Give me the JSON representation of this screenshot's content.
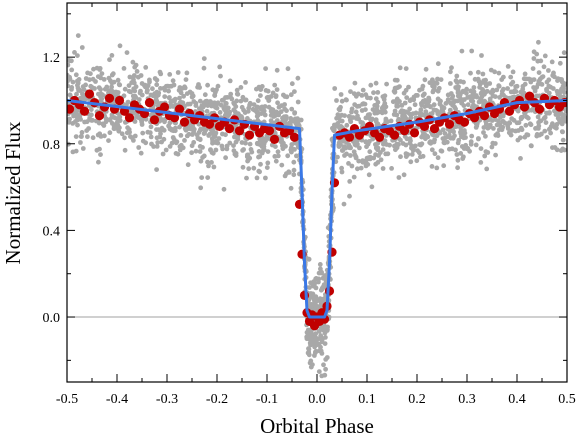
{
  "chart_data": {
    "type": "scatter",
    "title": "",
    "xlabel": "Orbital Phase",
    "ylabel": "Normalized Flux",
    "xlim": [
      -0.5,
      0.5
    ],
    "ylim": [
      -0.3,
      1.45
    ],
    "x_ticks": [
      -0.5,
      -0.4,
      -0.3,
      -0.2,
      -0.1,
      0.0,
      0.1,
      0.2,
      0.3,
      0.4,
      0.5
    ],
    "x_tick_labels": [
      "-0.5",
      "-0.4",
      "-0.3",
      "-0.2",
      "-0.1",
      "0.0",
      "0.1",
      "0.2",
      "0.3",
      "0.4",
      "0.5"
    ],
    "y_ticks": [
      0.0,
      0.4,
      0.8,
      1.2
    ],
    "y_tick_labels": [
      "0.0",
      "0.4",
      "0.8",
      "1.2"
    ],
    "reference_line_y": 0.0,
    "colors": {
      "raw": "#a8a8a8",
      "binned": "#c00000",
      "model": "#3a78e6",
      "reference": "#a0a0a0"
    },
    "raw_scatter_sd": 0.1,
    "binned": {
      "x": [
        -0.495,
        -0.485,
        -0.475,
        -0.465,
        -0.455,
        -0.445,
        -0.435,
        -0.425,
        -0.415,
        -0.405,
        -0.395,
        -0.385,
        -0.375,
        -0.365,
        -0.355,
        -0.345,
        -0.335,
        -0.325,
        -0.315,
        -0.305,
        -0.295,
        -0.285,
        -0.275,
        -0.265,
        -0.255,
        -0.245,
        -0.235,
        -0.225,
        -0.215,
        -0.205,
        -0.195,
        -0.185,
        -0.175,
        -0.165,
        -0.155,
        -0.145,
        -0.135,
        -0.125,
        -0.115,
        -0.105,
        -0.095,
        -0.085,
        -0.075,
        -0.065,
        -0.055,
        -0.045,
        -0.035,
        -0.03,
        -0.025,
        -0.02,
        -0.015,
        -0.01,
        -0.005,
        0.0,
        0.005,
        0.01,
        0.015,
        0.02,
        0.025,
        0.03,
        0.035,
        0.045,
        0.055,
        0.065,
        0.075,
        0.085,
        0.095,
        0.105,
        0.115,
        0.125,
        0.135,
        0.145,
        0.155,
        0.165,
        0.175,
        0.185,
        0.195,
        0.205,
        0.215,
        0.225,
        0.235,
        0.245,
        0.255,
        0.265,
        0.275,
        0.285,
        0.295,
        0.305,
        0.315,
        0.325,
        0.335,
        0.345,
        0.355,
        0.365,
        0.375,
        0.385,
        0.395,
        0.405,
        0.415,
        0.425,
        0.435,
        0.445,
        0.455,
        0.465,
        0.475,
        0.485,
        0.495
      ],
      "y": [
        0.96,
        1.0,
        0.98,
        0.95,
        1.03,
        0.99,
        0.93,
        0.97,
        1.01,
        0.96,
        1.0,
        0.95,
        0.92,
        0.98,
        0.96,
        0.94,
        0.99,
        0.91,
        0.95,
        0.97,
        0.93,
        0.92,
        0.96,
        0.9,
        0.94,
        0.91,
        0.93,
        0.9,
        0.89,
        0.92,
        0.88,
        0.9,
        0.87,
        0.91,
        0.86,
        0.89,
        0.84,
        0.88,
        0.85,
        0.87,
        0.86,
        0.82,
        0.88,
        0.85,
        0.86,
        0.83,
        0.52,
        0.29,
        0.1,
        0.02,
        -0.02,
        0.01,
        -0.04,
        0.0,
        -0.02,
        0.02,
        -0.01,
        0.05,
        0.12,
        0.3,
        0.62,
        0.84,
        0.85,
        0.83,
        0.87,
        0.84,
        0.86,
        0.88,
        0.85,
        0.83,
        0.87,
        0.86,
        0.84,
        0.88,
        0.86,
        0.89,
        0.85,
        0.9,
        0.88,
        0.91,
        0.87,
        0.9,
        0.92,
        0.89,
        0.93,
        0.91,
        0.9,
        0.94,
        0.92,
        0.95,
        0.93,
        0.97,
        0.94,
        0.96,
        0.99,
        0.95,
        0.98,
        1.0,
        0.97,
        1.02,
        0.99,
        0.96,
        1.01,
        0.98,
        1.0,
        0.97,
        0.99
      ]
    },
    "model": {
      "x": [
        -0.5,
        -0.035,
        -0.03,
        -0.025,
        -0.02,
        -0.015,
        0.015,
        0.02,
        0.025,
        0.03,
        0.035,
        0.08,
        0.2,
        0.3,
        0.4,
        0.5
      ],
      "y": [
        1.0,
        0.87,
        0.58,
        0.25,
        0.03,
        0.0,
        0.0,
        0.03,
        0.25,
        0.58,
        0.84,
        0.86,
        0.9,
        0.94,
        0.99,
        1.0
      ]
    }
  }
}
